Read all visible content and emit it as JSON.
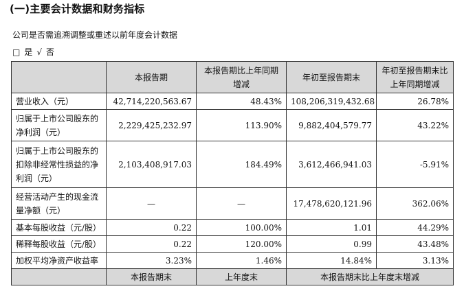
{
  "section_title": "(一)主要会计数据和财务指标",
  "question": "公司是否需追溯调整或重述以前年度会计数据",
  "choice": {
    "box": "□",
    "yes": "是",
    "check": "√",
    "no": "否"
  },
  "columns": [
    "本报告期",
    "本报告期比上年同期增减",
    "年初至报告期末",
    "年初至报告期末比上年同期增减"
  ],
  "rows": [
    {
      "label": "营业收入（元）",
      "c1": "42,714,220,563.67",
      "c2": "48.43%",
      "c3": "108,206,319,432.68",
      "c4": "26.78%"
    },
    {
      "label": "归属于上市公司股东的净利润（元）",
      "c1": "2,229,425,232.97",
      "c2": "113.90%",
      "c3": "9,882,404,579.77",
      "c4": "43.22%"
    },
    {
      "label": "归属于上市公司股东的扣除非经常性损益的净利润（元）",
      "c1": "2,103,408,917.03",
      "c2": "184.49%",
      "c3": "3,612,466,941.03",
      "c4": "-5.91%"
    },
    {
      "label": "经营活动产生的现金流量净额（元）",
      "c1": "—",
      "c2": "—",
      "c3": "17,478,620,121.96",
      "c4": "362.06%"
    },
    {
      "label": "基本每股收益（元/股）",
      "c1": "0.22",
      "c2": "100.00%",
      "c3": "1.01",
      "c4": "44.29%"
    },
    {
      "label": "稀释每股收益（元/股）",
      "c1": "0.22",
      "c2": "120.00%",
      "c3": "0.99",
      "c4": "43.48%"
    },
    {
      "label": "加权平均净资产收益率",
      "c1": "3.23%",
      "c2": "1.46%",
      "c3": "14.84%",
      "c4": "3.13%"
    }
  ],
  "footer_columns": [
    "本报告期末",
    "上年度末",
    "本报告期末比上年度末增减"
  ]
}
